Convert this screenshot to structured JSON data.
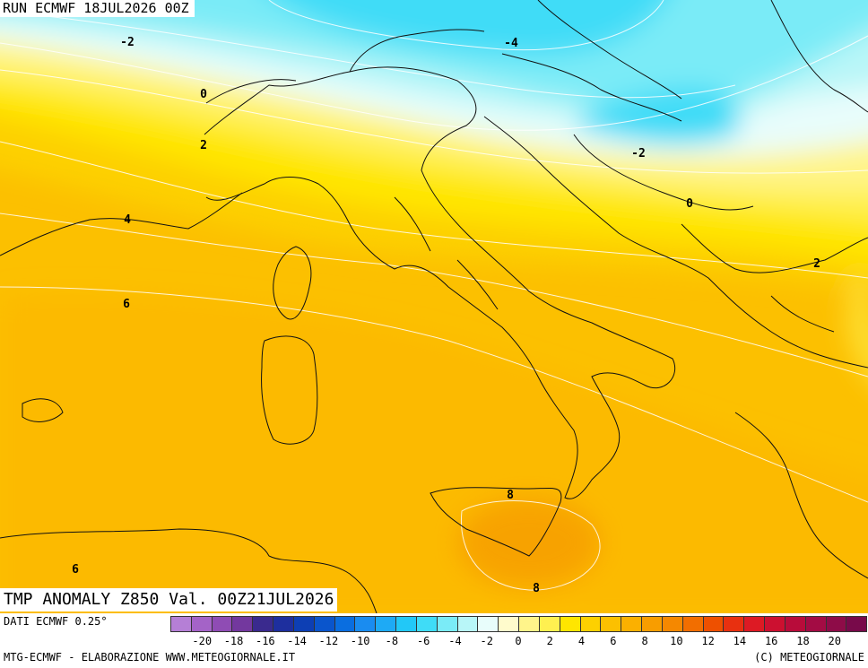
{
  "header": {
    "run_label": "RUN ECMWF 18JUL2026 00Z",
    "title": "TMP ANOMALY Z850 Val. 00Z21JUL2026"
  },
  "footer": {
    "data_source": "DATI ECMWF 0.25°",
    "credit_left": "MTG-ECMWF - ELABORAZIONE WWW.METEOGIORNALE.IT",
    "credit_right": "(C) METEOGIORNALE"
  },
  "map": {
    "contour_labels": [
      {
        "text": "-2",
        "value": -2
      },
      {
        "text": "-4",
        "value": -4
      },
      {
        "text": "0",
        "value": 0
      },
      {
        "text": "2",
        "value": 2
      },
      {
        "text": "-2",
        "value": -2
      },
      {
        "text": "0",
        "value": 0
      },
      {
        "text": "4",
        "value": 4
      },
      {
        "text": "2",
        "value": 2
      },
      {
        "text": "6",
        "value": 6
      },
      {
        "text": "8",
        "value": 8
      },
      {
        "text": "8",
        "value": 8
      },
      {
        "text": "6",
        "value": 6
      }
    ]
  },
  "colorbar": {
    "colors": [
      "#b57fd6",
      "#a463c7",
      "#8f4cb4",
      "#73389e",
      "#3a2a8e",
      "#1e2f9e",
      "#0d3fb4",
      "#0a55cc",
      "#0a6ee0",
      "#1a8cf0",
      "#1eaaf5",
      "#22c8f7",
      "#3fdcf7",
      "#7aebf7",
      "#b8f6f8",
      "#e8fdfb",
      "#fffbcc",
      "#fff48a",
      "#fff050",
      "#ffe600",
      "#fdd000",
      "#fcc000",
      "#fbb000",
      "#f89d00",
      "#f58800",
      "#f26e00",
      "#ee5000",
      "#e83010",
      "#dd1a24",
      "#cc1030",
      "#b80c3a",
      "#a30c44",
      "#8e0c48",
      "#780a4a"
    ],
    "tick_labels": [
      "-20",
      "-18",
      "-16",
      "-14",
      "-12",
      "-10",
      "-8",
      "-6",
      "-4",
      "-2",
      "0",
      "2",
      "4",
      "6",
      "8",
      "10",
      "12",
      "14",
      "16",
      "18",
      "20"
    ],
    "tick_values": [
      -20,
      -18,
      -16,
      -14,
      -12,
      -10,
      -8,
      -6,
      -4,
      -2,
      0,
      2,
      4,
      6,
      8,
      10,
      12,
      14,
      16,
      18,
      20
    ],
    "range": [
      -22,
      22
    ]
  }
}
